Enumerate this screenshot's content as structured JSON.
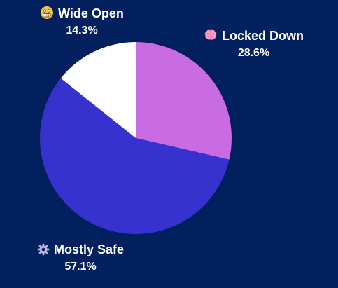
{
  "chart_data": {
    "type": "pie",
    "slices": [
      {
        "label": "Locked Down",
        "value": 28.6,
        "value_label": "28.6%",
        "color": "#C96BE3",
        "icon": "brain-emoji-icon"
      },
      {
        "label": "Mostly Safe",
        "value": 57.1,
        "value_label": "57.1%",
        "color": "#3632CD",
        "icon": "gear-icon"
      },
      {
        "label": "Wide Open",
        "value": 14.3,
        "value_label": "14.3%",
        "color": "#FFFFFF",
        "icon": "grimacing-face-icon"
      }
    ],
    "start_angle": "12 o'clock",
    "direction": "clockwise",
    "legend": "none",
    "background": "#02205E"
  }
}
